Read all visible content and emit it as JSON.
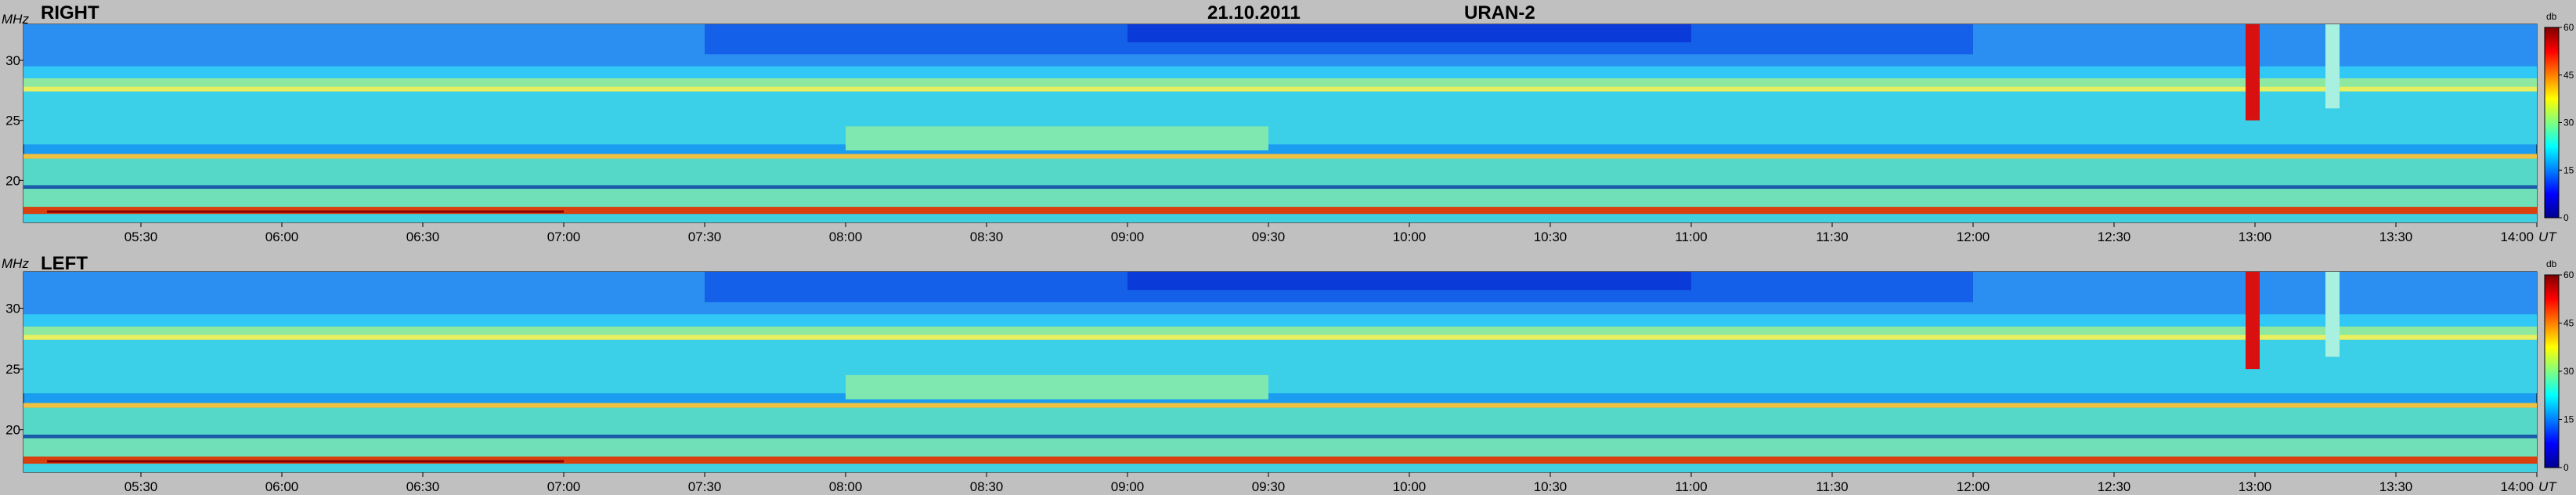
{
  "chart_data": {
    "type": "heatmap",
    "header": {
      "date": "21.10.2011",
      "station": "URAN-2"
    },
    "x_unit": "UT",
    "y_unit": "MHz",
    "colorbar_unit": "db",
    "colorbar_ticks": [
      "60",
      "45",
      "30",
      "15",
      "0"
    ],
    "colorbar_range": [
      0,
      60
    ],
    "x_ticks": [
      "05:30",
      "06:00",
      "06:30",
      "07:00",
      "07:30",
      "08:00",
      "08:30",
      "09:00",
      "09:30",
      "10:00",
      "10:30",
      "11:00",
      "11:30",
      "12:00",
      "12:30",
      "13:00",
      "13:30",
      "14:00"
    ],
    "x_range": [
      "05:05",
      "14:00"
    ],
    "y_ticks": [
      "30",
      "25",
      "20"
    ],
    "y_range": [
      16.5,
      33
    ],
    "panels": [
      {
        "label": "RIGHT"
      },
      {
        "label": "LEFT"
      }
    ],
    "grid": false
  }
}
